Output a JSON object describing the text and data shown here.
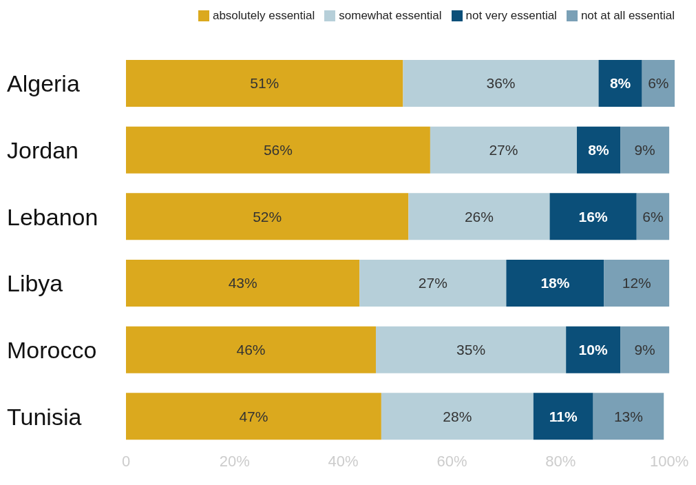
{
  "chart_data": {
    "type": "bar",
    "orientation": "horizontal",
    "stacked": true,
    "categories": [
      "Algeria",
      "Jordan",
      "Lebanon",
      "Libya",
      "Morocco",
      "Tunisia"
    ],
    "series": [
      {
        "name": "absolutely essential",
        "color": "#dba91e",
        "values": [
          51,
          56,
          52,
          43,
          46,
          47
        ],
        "value_labels": [
          "51%",
          "56%",
          "52%",
          "43%",
          "46%",
          "47%"
        ]
      },
      {
        "name": "somewhat essential",
        "color": "#b6cfd9",
        "values": [
          36,
          27,
          26,
          27,
          35,
          28
        ],
        "value_labels": [
          "36%",
          "27%",
          "26%",
          "27%",
          "35%",
          "28%"
        ]
      },
      {
        "name": "not very essential",
        "color": "#0b4f79",
        "values": [
          8,
          8,
          16,
          18,
          10,
          11
        ],
        "value_labels": [
          "8%",
          "8%",
          "16%",
          "18%",
          "10%",
          "11%"
        ]
      },
      {
        "name": "not at all essential",
        "color": "#7aa0b6",
        "values": [
          6,
          9,
          6,
          12,
          9,
          13
        ],
        "value_labels": [
          "6%",
          "9%",
          "6%",
          "12%",
          "9%",
          "13%"
        ]
      }
    ],
    "xlim": [
      0,
      101
    ],
    "xticks": [
      {
        "value": 0,
        "label": "0"
      },
      {
        "value": 20,
        "label": "20%"
      },
      {
        "value": 40,
        "label": "40%"
      },
      {
        "value": 60,
        "label": "60%"
      },
      {
        "value": 80,
        "label": "80%"
      },
      {
        "value": 100,
        "label": "100%"
      }
    ],
    "grid": false,
    "legend": "top right"
  }
}
